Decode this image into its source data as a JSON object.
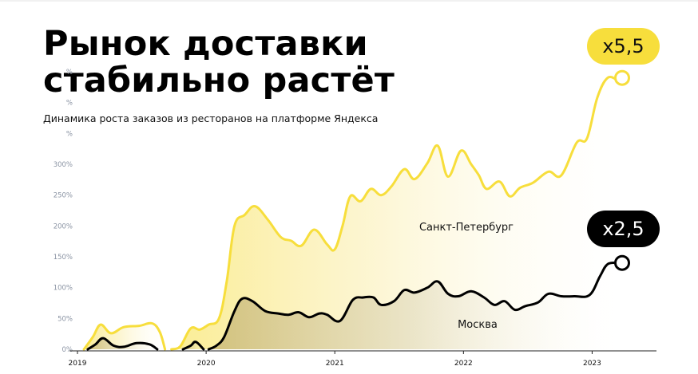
{
  "title_line1": "Рынок доставки",
  "title_line2": "стабильно растёт",
  "subtitle": "Динамика роста заказов из ресторанов на платформе Яндекса",
  "colors": {
    "spb": "#f7de3c",
    "moscow": "#000000",
    "badge_spb_bg": "#f7de3c",
    "badge_msk_bg": "#000000"
  },
  "chart_data": {
    "type": "area",
    "title": "",
    "xlabel": "",
    "ylabel": "",
    "x_ticks": [
      "2019",
      "2020",
      "2021",
      "2022",
      "2023"
    ],
    "x_tick_values": [
      2019.0,
      2020.0,
      2021.0,
      2022.0,
      2023.0
    ],
    "y_ticks": [
      "0%",
      "50%",
      "100%",
      "150%",
      "200%",
      "250%",
      "300%",
      "%",
      "%",
      "%"
    ],
    "y_tick_values": [
      0,
      50,
      100,
      150,
      200,
      250,
      300,
      350,
      400,
      450
    ],
    "xlim": [
      2019.0,
      2023.5
    ],
    "ylim": [
      0,
      450
    ],
    "grid": false,
    "series": [
      {
        "name": "Санкт-Петербург",
        "label": "Санкт-Петербург",
        "color": "#f7de3c",
        "segments": [
          [
            [
              2019.05,
              0
            ],
            [
              2019.12,
              20
            ],
            [
              2019.18,
              40
            ],
            [
              2019.26,
              26
            ],
            [
              2019.36,
              36
            ],
            [
              2019.48,
              38
            ],
            [
              2019.58,
              42
            ],
            [
              2019.64,
              28
            ],
            [
              2019.68,
              0
            ]
          ],
          [
            [
              2019.73,
              0
            ],
            [
              2019.8,
              5
            ],
            [
              2019.88,
              34
            ],
            [
              2019.95,
              32
            ],
            [
              2020.02,
              40
            ],
            [
              2020.1,
              50
            ],
            [
              2020.16,
              110
            ],
            [
              2020.22,
              200
            ],
            [
              2020.3,
              218
            ],
            [
              2020.38,
              232
            ],
            [
              2020.48,
              210
            ],
            [
              2020.58,
              182
            ],
            [
              2020.66,
              176
            ],
            [
              2020.74,
              168
            ],
            [
              2020.84,
              194
            ],
            [
              2020.94,
              170
            ],
            [
              2021.0,
              162
            ],
            [
              2021.06,
              200
            ],
            [
              2021.12,
              248
            ],
            [
              2021.2,
              240
            ],
            [
              2021.28,
              260
            ],
            [
              2021.36,
              250
            ],
            [
              2021.44,
              264
            ],
            [
              2021.54,
              292
            ],
            [
              2021.62,
              276
            ],
            [
              2021.72,
              302
            ],
            [
              2021.8,
              330
            ],
            [
              2021.88,
              280
            ],
            [
              2021.98,
              322
            ],
            [
              2022.06,
              300
            ],
            [
              2022.12,
              282
            ],
            [
              2022.18,
              260
            ],
            [
              2022.28,
              272
            ],
            [
              2022.36,
              248
            ],
            [
              2022.44,
              262
            ],
            [
              2022.54,
              270
            ],
            [
              2022.66,
              288
            ],
            [
              2022.76,
              282
            ],
            [
              2022.88,
              335
            ],
            [
              2022.96,
              342
            ],
            [
              2023.04,
              408
            ],
            [
              2023.12,
              440
            ],
            [
              2023.2,
              436
            ]
          ]
        ],
        "end_value": 440,
        "badge": "x5,5"
      },
      {
        "name": "Москва",
        "label": "Москва",
        "color": "#000000",
        "segments": [
          [
            [
              2019.08,
              0
            ],
            [
              2019.14,
              8
            ],
            [
              2019.2,
              18
            ],
            [
              2019.28,
              6
            ],
            [
              2019.36,
              4
            ],
            [
              2019.46,
              10
            ],
            [
              2019.56,
              8
            ],
            [
              2019.62,
              0
            ]
          ],
          [
            [
              2019.82,
              0
            ],
            [
              2019.88,
              6
            ],
            [
              2019.92,
              12
            ],
            [
              2019.98,
              0
            ]
          ],
          [
            [
              2020.02,
              0
            ],
            [
              2020.08,
              6
            ],
            [
              2020.14,
              20
            ],
            [
              2020.22,
              62
            ],
            [
              2020.28,
              82
            ],
            [
              2020.36,
              78
            ],
            [
              2020.46,
              62
            ],
            [
              2020.56,
              58
            ],
            [
              2020.64,
              56
            ],
            [
              2020.72,
              60
            ],
            [
              2020.8,
              52
            ],
            [
              2020.88,
              58
            ],
            [
              2020.94,
              56
            ],
            [
              2021.04,
              46
            ],
            [
              2021.14,
              80
            ],
            [
              2021.22,
              84
            ],
            [
              2021.3,
              84
            ],
            [
              2021.36,
              72
            ],
            [
              2021.46,
              78
            ],
            [
              2021.54,
              96
            ],
            [
              2021.62,
              92
            ],
            [
              2021.72,
              100
            ],
            [
              2021.8,
              110
            ],
            [
              2021.88,
              90
            ],
            [
              2021.96,
              86
            ],
            [
              2022.06,
              94
            ],
            [
              2022.16,
              84
            ],
            [
              2022.24,
              72
            ],
            [
              2022.32,
              78
            ],
            [
              2022.4,
              64
            ],
            [
              2022.48,
              70
            ],
            [
              2022.58,
              76
            ],
            [
              2022.66,
              90
            ],
            [
              2022.76,
              86
            ],
            [
              2022.86,
              86
            ],
            [
              2022.98,
              88
            ],
            [
              2023.06,
              118
            ],
            [
              2023.12,
              138
            ],
            [
              2023.2,
              140
            ]
          ]
        ],
        "end_value": 140,
        "badge": "x2,5"
      }
    ]
  }
}
